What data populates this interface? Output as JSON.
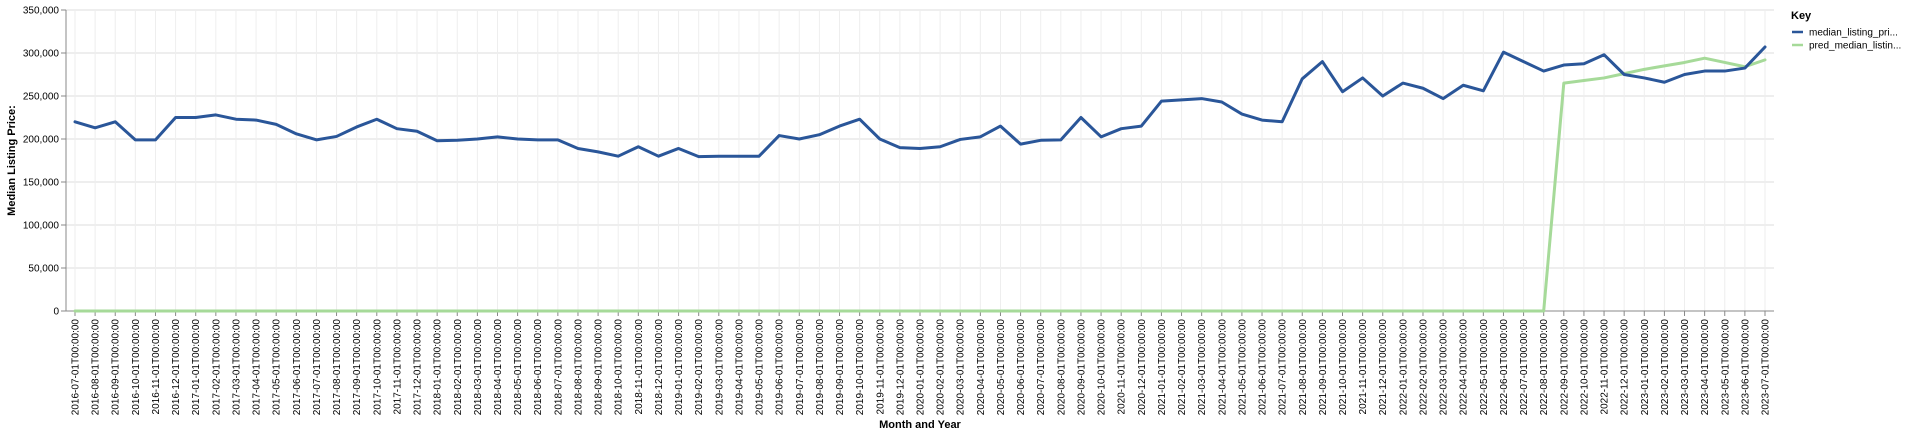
{
  "chart_data": {
    "type": "line",
    "xlabel": "Month and Year",
    "ylabel": "Median Listing Price:",
    "ylim": [
      0,
      350000
    ],
    "y_ticks": [
      0,
      50000,
      100000,
      150000,
      200000,
      250000,
      300000,
      350000
    ],
    "y_tick_labels": [
      "0",
      "50,000",
      "100,000",
      "150,000",
      "200,000",
      "250,000",
      "300,000",
      "350,000"
    ],
    "grid": true,
    "legend": {
      "title": "Key",
      "placement": "right"
    },
    "x": [
      "2016-07-01T00:00:00",
      "2016-08-01T00:00:00",
      "2016-09-01T00:00:00",
      "2016-10-01T00:00:00",
      "2016-11-01T00:00:00",
      "2016-12-01T00:00:00",
      "2017-01-01T00:00:00",
      "2017-02-01T00:00:00",
      "2017-03-01T00:00:00",
      "2017-04-01T00:00:00",
      "2017-05-01T00:00:00",
      "2017-06-01T00:00:00",
      "2017-07-01T00:00:00",
      "2017-08-01T00:00:00",
      "2017-09-01T00:00:00",
      "2017-10-01T00:00:00",
      "2017-11-01T00:00:00",
      "2017-12-01T00:00:00",
      "2018-01-01T00:00:00",
      "2018-02-01T00:00:00",
      "2018-03-01T00:00:00",
      "2018-04-01T00:00:00",
      "2018-05-01T00:00:00",
      "2018-06-01T00:00:00",
      "2018-07-01T00:00:00",
      "2018-08-01T00:00:00",
      "2018-09-01T00:00:00",
      "2018-10-01T00:00:00",
      "2018-11-01T00:00:00",
      "2018-12-01T00:00:00",
      "2019-01-01T00:00:00",
      "2019-02-01T00:00:00",
      "2019-03-01T00:00:00",
      "2019-04-01T00:00:00",
      "2019-05-01T00:00:00",
      "2019-06-01T00:00:00",
      "2019-07-01T00:00:00",
      "2019-08-01T00:00:00",
      "2019-09-01T00:00:00",
      "2019-10-01T00:00:00",
      "2019-11-01T00:00:00",
      "2019-12-01T00:00:00",
      "2020-01-01T00:00:00",
      "2020-02-01T00:00:00",
      "2020-03-01T00:00:00",
      "2020-04-01T00:00:00",
      "2020-05-01T00:00:00",
      "2020-06-01T00:00:00",
      "2020-07-01T00:00:00",
      "2020-08-01T00:00:00",
      "2020-09-01T00:00:00",
      "2020-10-01T00:00:00",
      "2020-11-01T00:00:00",
      "2020-12-01T00:00:00",
      "2021-01-01T00:00:00",
      "2021-02-01T00:00:00",
      "2021-03-01T00:00:00",
      "2021-04-01T00:00:00",
      "2021-05-01T00:00:00",
      "2021-06-01T00:00:00",
      "2021-07-01T00:00:00",
      "2021-08-01T00:00:00",
      "2021-09-01T00:00:00",
      "2021-10-01T00:00:00",
      "2021-11-01T00:00:00",
      "2021-12-01T00:00:00",
      "2022-01-01T00:00:00",
      "2022-02-01T00:00:00",
      "2022-03-01T00:00:00",
      "2022-04-01T00:00:00",
      "2022-05-01T00:00:00",
      "2022-06-01T00:00:00",
      "2022-07-01T00:00:00",
      "2022-08-01T00:00:00",
      "2022-09-01T00:00:00",
      "2022-10-01T00:00:00",
      "2022-11-01T00:00:00",
      "2022-12-01T00:00:00",
      "2023-01-01T00:00:00",
      "2023-02-01T00:00:00",
      "2023-03-01T00:00:00",
      "2023-04-01T00:00:00",
      "2023-05-01T00:00:00",
      "2023-06-01T00:00:00",
      "2023-07-01T00:00:00"
    ],
    "series": [
      {
        "name": "median_listing_pri...",
        "color": "#2a5699",
        "values": [
          220000,
          213000,
          220000,
          199000,
          199000,
          225000,
          225000,
          228000,
          223000,
          222000,
          217000,
          206000,
          199000,
          203000,
          214000,
          223000,
          212000,
          209000,
          198000,
          198500,
          200000,
          202500,
          200000,
          199000,
          199000,
          189000,
          185000,
          180000,
          191000,
          180000,
          189000,
          179500,
          180000,
          180000,
          180000,
          204000,
          200000,
          205000,
          215000,
          223000,
          200000,
          190000,
          189000,
          191000,
          199500,
          202500,
          215000,
          194000,
          198500,
          199000,
          225000,
          202500,
          212000,
          215000,
          244000,
          245500,
          247000,
          243000,
          229000,
          222000,
          220000,
          270000,
          290000,
          255000,
          271000,
          250000,
          265000,
          259000,
          247000,
          262500,
          256000,
          301000,
          290000,
          279000,
          286000,
          287500,
          298000,
          275000,
          271000,
          266000,
          275000,
          279000,
          279000,
          282500,
          307000
        ]
      },
      {
        "name": "pred_median_listin...",
        "color": "#a6da99",
        "values": [
          0,
          0,
          0,
          0,
          0,
          0,
          0,
          0,
          0,
          0,
          0,
          0,
          0,
          0,
          0,
          0,
          0,
          0,
          0,
          0,
          0,
          0,
          0,
          0,
          0,
          0,
          0,
          0,
          0,
          0,
          0,
          0,
          0,
          0,
          0,
          0,
          0,
          0,
          0,
          0,
          0,
          0,
          0,
          0,
          0,
          0,
          0,
          0,
          0,
          0,
          0,
          0,
          0,
          0,
          0,
          0,
          0,
          0,
          0,
          0,
          0,
          0,
          0,
          0,
          0,
          0,
          0,
          0,
          0,
          0,
          0,
          0,
          0,
          0,
          265000,
          268000,
          271000,
          276000,
          281000,
          285000,
          289000,
          294000,
          289000,
          284000,
          292000
        ]
      }
    ]
  }
}
